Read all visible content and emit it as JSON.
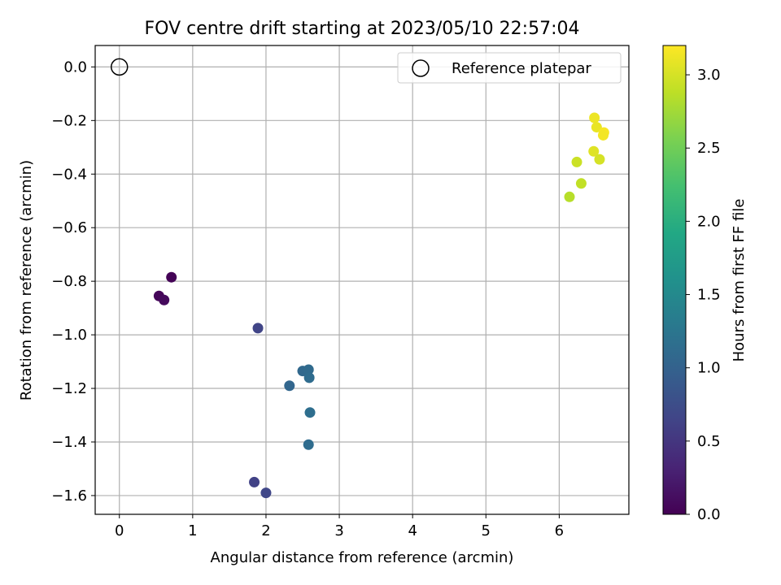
{
  "chart_data": {
    "type": "scatter",
    "title": "FOV centre drift starting at 2023/05/10 22:57:04",
    "xlabel": "Angular distance from reference (arcmin)",
    "ylabel": "Rotation from reference (arcmin)",
    "xlim": [
      -0.33,
      6.95
    ],
    "ylim": [
      -1.67,
      0.08
    ],
    "xticks": [
      0,
      1,
      2,
      3,
      4,
      5,
      6
    ],
    "xtick_labels": [
      "0",
      "1",
      "2",
      "3",
      "4",
      "5",
      "6"
    ],
    "yticks": [
      0.0,
      -0.2,
      -0.4,
      -0.6,
      -0.8,
      -1.0,
      -1.2,
      -1.4,
      -1.6
    ],
    "ytick_labels": [
      "0.0",
      "−0.2",
      "−0.4",
      "−0.6",
      "−0.8",
      "−1.0",
      "−1.2",
      "−1.4",
      "−1.6"
    ],
    "grid": true,
    "reference": {
      "label": "Reference platepar",
      "x": 0.0,
      "y": 0.0
    },
    "legend_position": "top-right",
    "colorbar": {
      "label": "Hours from first FF file",
      "colormap": "viridis",
      "range": [
        0.0,
        3.2
      ],
      "ticks": [
        0.0,
        0.5,
        1.0,
        1.5,
        2.0,
        2.5,
        3.0
      ],
      "tick_labels": [
        "0.0",
        "0.5",
        "1.0",
        "1.5",
        "2.0",
        "2.5",
        "3.0"
      ]
    },
    "points": [
      {
        "x": 0.71,
        "y": -0.785,
        "hours": 0.02
      },
      {
        "x": 0.54,
        "y": -0.855,
        "hours": 0.05
      },
      {
        "x": 0.61,
        "y": -0.87,
        "hours": 0.08
      },
      {
        "x": 1.89,
        "y": -0.975,
        "hours": 0.65
      },
      {
        "x": 1.84,
        "y": -1.55,
        "hours": 0.62
      },
      {
        "x": 2.0,
        "y": -1.59,
        "hours": 0.68
      },
      {
        "x": 2.32,
        "y": -1.19,
        "hours": 1.05
      },
      {
        "x": 2.5,
        "y": -1.135,
        "hours": 1.08
      },
      {
        "x": 2.58,
        "y": -1.13,
        "hours": 1.1
      },
      {
        "x": 2.59,
        "y": -1.16,
        "hours": 1.12
      },
      {
        "x": 2.6,
        "y": -1.29,
        "hours": 1.15
      },
      {
        "x": 2.58,
        "y": -1.41,
        "hours": 1.13
      },
      {
        "x": 6.14,
        "y": -0.485,
        "hours": 2.85
      },
      {
        "x": 6.3,
        "y": -0.435,
        "hours": 2.9
      },
      {
        "x": 6.24,
        "y": -0.355,
        "hours": 2.95
      },
      {
        "x": 6.47,
        "y": -0.315,
        "hours": 3.05
      },
      {
        "x": 6.55,
        "y": -0.345,
        "hours": 3.0
      },
      {
        "x": 6.48,
        "y": -0.19,
        "hours": 3.12
      },
      {
        "x": 6.51,
        "y": -0.225,
        "hours": 3.1
      },
      {
        "x": 6.61,
        "y": -0.245,
        "hours": 3.17
      },
      {
        "x": 6.6,
        "y": -0.255,
        "hours": 3.15
      }
    ]
  }
}
